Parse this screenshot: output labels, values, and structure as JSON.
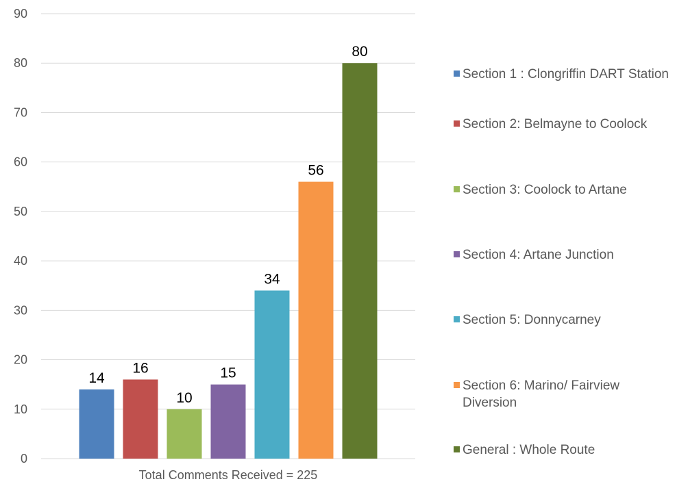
{
  "chart_data": {
    "type": "bar",
    "xlabel": "Total Comments Received = 225",
    "ylabel": "",
    "ylim": [
      0,
      90
    ],
    "yticks": [
      0,
      10,
      20,
      30,
      40,
      50,
      60,
      70,
      80,
      90
    ],
    "grid": true,
    "legend_position": "right",
    "categories": [
      "Total Comments Received = 225"
    ],
    "series": [
      {
        "name": "Section 1 : Clongriffin DART Station",
        "values": [
          14
        ],
        "color": "#4F81BD"
      },
      {
        "name": "Section 2: Belmayne to Coolock",
        "values": [
          16
        ],
        "color": "#C0504D"
      },
      {
        "name": "Section 3: Coolock to Artane",
        "values": [
          10
        ],
        "color": "#9BBB59"
      },
      {
        "name": "Section 4: Artane Junction",
        "values": [
          15
        ],
        "color": "#8064A2"
      },
      {
        "name": "Section 5: Donnycarney",
        "values": [
          34
        ],
        "color": "#4BACC6"
      },
      {
        "name": "Section 6: Marino/ Fairview Diversion",
        "values": [
          56
        ],
        "color": "#F79646"
      },
      {
        "name": "General : Whole Route",
        "values": [
          80
        ],
        "color": "#617A2E"
      }
    ]
  }
}
